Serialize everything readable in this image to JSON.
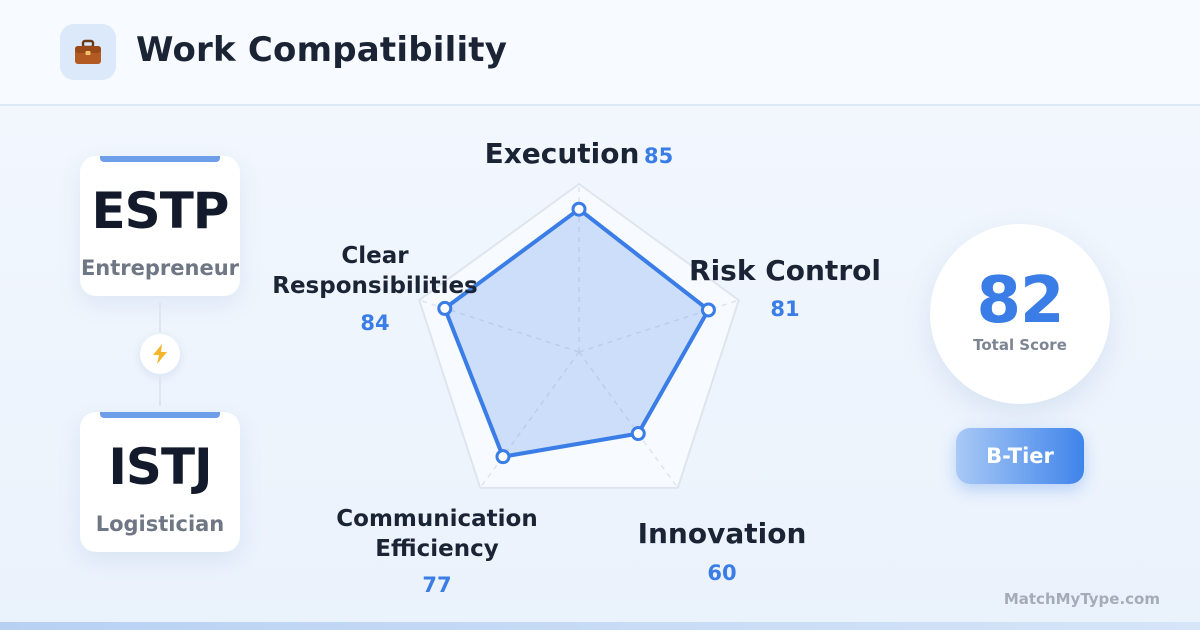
{
  "header": {
    "title": "Work Compatibility",
    "icon": "briefcase-icon"
  },
  "types": [
    {
      "code": "ESTP",
      "role": "Entrepreneur",
      "accent": "#6d9ee8"
    },
    {
      "code": "ISTJ",
      "role": "Logistician",
      "accent": "#6d9ee8"
    }
  ],
  "connector_icon": "lightning-icon",
  "chart_data": {
    "type": "radar",
    "max": 100,
    "rings": 4,
    "axes": [
      {
        "label": [
          "Execution"
        ],
        "value": 85
      },
      {
        "label": [
          "Risk Control"
        ],
        "value": 81
      },
      {
        "label": [
          "Innovation"
        ],
        "value": 60
      },
      {
        "label": [
          "Communication",
          "Efficiency"
        ],
        "value": 77
      },
      {
        "label": [
          "Clear",
          "Responsibilities"
        ],
        "value": 84
      }
    ],
    "colors": {
      "series": "#3a7de6",
      "value_text": "#3a7de6",
      "label_text": "#1b2435"
    }
  },
  "score": {
    "value": "82",
    "label": "Total Score"
  },
  "tier": {
    "label": "B-Tier"
  },
  "brand": "MatchMyType.com"
}
